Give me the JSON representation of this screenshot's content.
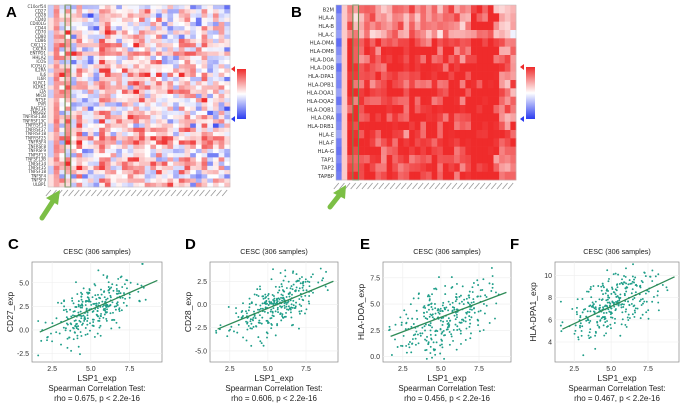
{
  "panel_labels": [
    "A",
    "B",
    "C",
    "D",
    "E",
    "F"
  ],
  "chart_data": [
    {
      "type": "heatmap",
      "panel": "A",
      "rows": [
        "C10orf54",
        "CD27",
        "CD28",
        "CD40",
        "CD40LG",
        "CD44",
        "CD70",
        "CD80",
        "CD86",
        "CXCL12",
        "CXCR4",
        "ENTPD1",
        "HHLA2",
        "ICOS",
        "ICOSLG",
        "IL2RA",
        "IL6",
        "IL6R",
        "KLRC1",
        "KLRK1",
        "LTA",
        "MICB",
        "NT5E",
        "PVR",
        "RAET1E",
        "TMIGD2",
        "TNFRSF13B",
        "TNFRSF13C",
        "TNFRSF14",
        "TNFRSF17",
        "TNFRSF18",
        "TNFRSF25",
        "TNFRSF4",
        "TNFRSF8",
        "TNFRSF9",
        "TNFSF13",
        "TNFSF13B",
        "TNFSF14",
        "TNFSF15",
        "TNFSF18",
        "TNFSF4",
        "TNFSF9",
        "ULBP1"
      ],
      "n_cols": 32,
      "highlight_col": 3,
      "color_scale": {
        "low": "#2b3cf0",
        "mid": "#ffffff",
        "high": "#ef2b2b"
      }
    },
    {
      "type": "heatmap",
      "panel": "B",
      "rows": [
        "B2M",
        "HLA-A",
        "HLA-B",
        "HLA-C",
        "HLA-DMA",
        "HLA-DMB",
        "HLA-DOA",
        "HLA-DOB",
        "HLA-DPA1",
        "HLA-DPB1",
        "HLA-DQA1",
        "HLA-DQA2",
        "HLA-DQB1",
        "HLA-DRA",
        "HLA-DRB1",
        "HLA-E",
        "HLA-F",
        "HLA-G",
        "TAP1",
        "TAP2",
        "TAPBP"
      ],
      "n_cols": 32,
      "highlight_col": 3,
      "color_scale": {
        "low": "#2b3cf0",
        "mid": "#ffffff",
        "high": "#ef2b2b"
      }
    },
    {
      "type": "scatter",
      "panel": "C",
      "title": "CESC (306 samples)",
      "xlabel": "LSP1_exp",
      "ylabel": "CD27_exp",
      "xlim": [
        1.2,
        9.6
      ],
      "ylim": [
        -3.4,
        7.2
      ],
      "xticks": [
        2.5,
        5.0,
        7.5
      ],
      "yticks": [
        -2.5,
        0.0,
        2.5,
        5.0
      ],
      "stat_line1": "Spearman Correlation Test:",
      "stat_line2": "rho = 0.675, p < 2.2e-16",
      "fit": {
        "slope": 0.72,
        "intercept": -1.45
      },
      "center": 5.2,
      "spread": 1.35,
      "noise": 1.4,
      "seed": 11
    },
    {
      "type": "scatter",
      "panel": "D",
      "title": "CESC (306 samples)",
      "xlabel": "LSP1_exp",
      "ylabel": "CD28_exp",
      "xlim": [
        1.2,
        9.6
      ],
      "ylim": [
        -6.2,
        4.6
      ],
      "xticks": [
        2.5,
        5.0,
        7.5
      ],
      "yticks": [
        -5.0,
        -2.5,
        0.0,
        2.5
      ],
      "stat_line1": "Spearman Correlation Test:",
      "stat_line2": "rho = 0.606, p < 2.2e-16",
      "fit": {
        "slope": 0.68,
        "intercept": -3.8
      },
      "center": 5.4,
      "spread": 1.4,
      "noise": 1.3,
      "seed": 23
    },
    {
      "type": "scatter",
      "panel": "E",
      "title": "CESC (306 samples)",
      "xlabel": "LSP1_exp",
      "ylabel": "HLA-DOA_exp",
      "xlim": [
        1.2,
        9.6
      ],
      "ylim": [
        -0.5,
        9.0
      ],
      "xticks": [
        2.5,
        5.0,
        7.5
      ],
      "yticks": [
        0.0,
        2.5,
        5.0,
        7.5
      ],
      "stat_line1": "Spearman Correlation Test:",
      "stat_line2": "rho = 0.456, p < 2.2e-16",
      "fit": {
        "slope": 0.55,
        "intercept": 1.0
      },
      "center": 5.2,
      "spread": 1.5,
      "noise": 1.6,
      "seed": 37
    },
    {
      "type": "scatter",
      "panel": "F",
      "title": "CESC (306 samples)",
      "xlabel": "LSP1_exp",
      "ylabel": "HLA-DPA1_exp",
      "xlim": [
        1.2,
        9.6
      ],
      "ylim": [
        2.2,
        11.2
      ],
      "xticks": [
        2.5,
        5.0,
        7.5
      ],
      "yticks": [
        4,
        6,
        8,
        10
      ],
      "stat_line1": "Spearman Correlation Test:",
      "stat_line2": "rho = 0.467, p < 2.2e-16",
      "fit": {
        "slope": 0.62,
        "intercept": 4.1
      },
      "center": 5.2,
      "spread": 1.5,
      "noise": 1.3,
      "seed": 51
    }
  ],
  "colors": {
    "point": "#1f9e89",
    "line": "#2e8b57",
    "arrow": "#7cbf45",
    "highlight": "#6b8e4e"
  }
}
